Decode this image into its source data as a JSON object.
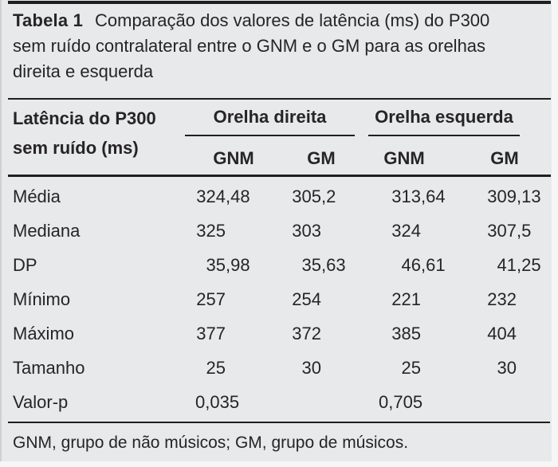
{
  "panel": {
    "background": "#e8e9ea",
    "rule_color": "#1f1f1f",
    "text_color": "#262427"
  },
  "title": {
    "label": "Tabela 1",
    "line1": "Comparação dos valores de latência (ms) do P300",
    "line2": "sem ruído contralateral entre o GNM e o GM para as orelhas",
    "line3": "direita e esquerda"
  },
  "table": {
    "stub_header_line1": "Latência do P300",
    "stub_header_line2": "sem ruído (ms)",
    "groups": [
      {
        "label": "Orelha direita",
        "cols": [
          "GNM",
          "GM"
        ]
      },
      {
        "label": "Orelha esquerda",
        "cols": [
          "GNM",
          "GM"
        ]
      }
    ],
    "rows": [
      {
        "label": "Média",
        "values": [
          "324,48",
          "305,2",
          "313,64",
          "309,13"
        ]
      },
      {
        "label": "Mediana",
        "values": [
          "325",
          "303",
          "324",
          "307,5"
        ]
      },
      {
        "label": "DP",
        "values": [
          "35,98",
          "35,63",
          "46,61",
          "41,25"
        ]
      },
      {
        "label": "Mínimo",
        "values": [
          "257",
          "254",
          "221",
          "232"
        ]
      },
      {
        "label": "Máximo",
        "values": [
          "377",
          "372",
          "385",
          "404"
        ]
      },
      {
        "label": "Tamanho",
        "values": [
          "25",
          "30",
          "25",
          "30"
        ]
      },
      {
        "label": "Valor-p",
        "values": [
          "0,035",
          "",
          "0,705",
          ""
        ],
        "pvalue_row": true
      }
    ],
    "footnote": "GNM, grupo de não músicos; GM, grupo de músicos."
  }
}
